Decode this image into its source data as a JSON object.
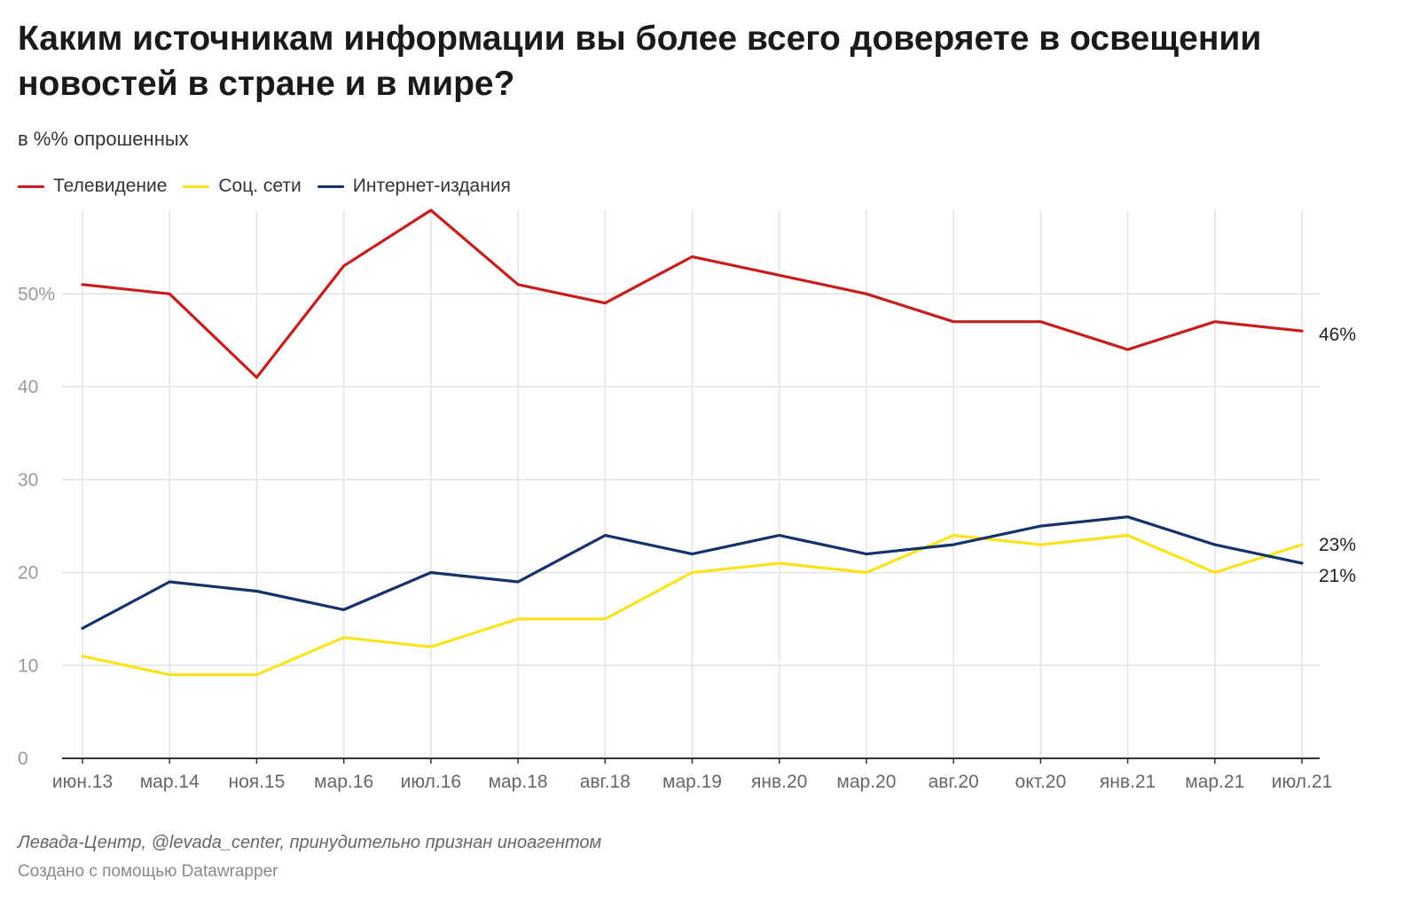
{
  "header": {
    "title": "Каким источникам информации вы более всего доверяете в освещении новостей в стране и в мире?",
    "subtitle": "в %% опрошенных"
  },
  "legend": [
    {
      "label": "Телевидение",
      "color": "#c71e1d"
    },
    {
      "label": "Соц. сети",
      "color": "#fae31c"
    },
    {
      "label": "Интернет-издания",
      "color": "#15326b"
    }
  ],
  "footer": {
    "source": "Левада-Центр, @levada_center, принудительно признан иноагентом",
    "credit": "Создано с помощью Datawrapper"
  },
  "chart_data": {
    "type": "line",
    "categories": [
      "июн.13",
      "мар.14",
      "ноя.15",
      "мар.16",
      "июл.16",
      "мар.18",
      "авг.18",
      "мар.19",
      "янв.20",
      "мар.20",
      "авг.20",
      "окт.20",
      "янв.21",
      "мар.21",
      "июл.21"
    ],
    "y_ticks": [
      0,
      10,
      20,
      30,
      40,
      50
    ],
    "y_tick_labels": [
      "0",
      "10",
      "20",
      "30",
      "40",
      "50%"
    ],
    "ylim": [
      0,
      59
    ],
    "grid": true,
    "legend_position": "top-left",
    "series": [
      {
        "name": "Телевидение",
        "color": "#c71e1d",
        "values": [
          51,
          50,
          41,
          53,
          59,
          51,
          49,
          54,
          52,
          50,
          47,
          47,
          44,
          47,
          46
        ],
        "end_label": "46%"
      },
      {
        "name": "Соц. сети",
        "color": "#fae31c",
        "values": [
          11,
          9,
          9,
          13,
          12,
          15,
          15,
          20,
          21,
          20,
          24,
          23,
          24,
          20,
          23
        ],
        "end_label": "23%"
      },
      {
        "name": "Интернет-издания",
        "color": "#15326b",
        "values": [
          14,
          19,
          18,
          16,
          20,
          19,
          24,
          22,
          24,
          22,
          23,
          25,
          26,
          23,
          21
        ],
        "end_label": "21%"
      }
    ]
  }
}
